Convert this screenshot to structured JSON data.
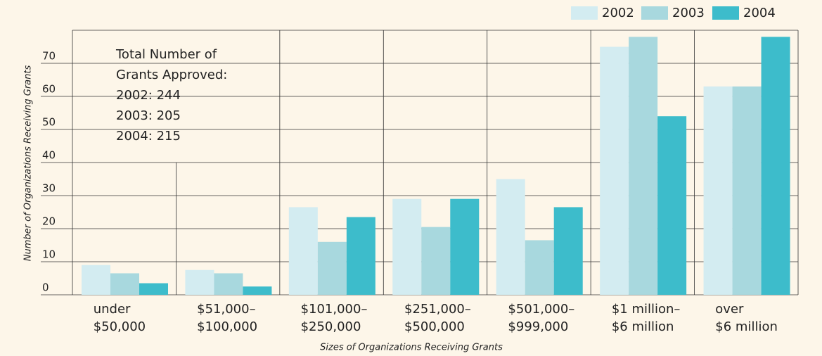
{
  "chart_data": {
    "type": "bar",
    "x_label": "Sizes of Organizations Receiving Grants",
    "y_label": "Number of Organizations Receiving Grants",
    "categories": [
      "under\n$50,000",
      "$51,000–\n$100,000",
      "$101,000–\n$250,000",
      "$251,000–\n$500,000",
      "$501,000–\n$999,000",
      "$1 million–\n$6 million",
      "over\n$6 million"
    ],
    "series": [
      {
        "name": "2002",
        "color": "#d3ecf1",
        "values": [
          9,
          7.5,
          26.5,
          29,
          35,
          75,
          63
        ]
      },
      {
        "name": "2003",
        "color": "#a8d8de",
        "values": [
          6.5,
          6.5,
          16,
          20.5,
          16.5,
          78,
          63
        ]
      },
      {
        "name": "2004",
        "color": "#3dbccb",
        "values": [
          3.5,
          2.5,
          23.5,
          29,
          26.5,
          54,
          78
        ]
      }
    ],
    "ylim": [
      0,
      80
    ],
    "yticks": [
      0,
      10,
      20,
      30,
      40,
      50,
      60,
      70
    ],
    "grid": true,
    "annotation": [
      "Total Number of",
      "Grants Approved:",
      "2002:  244",
      "2003:  205",
      "2004:  215"
    ]
  }
}
